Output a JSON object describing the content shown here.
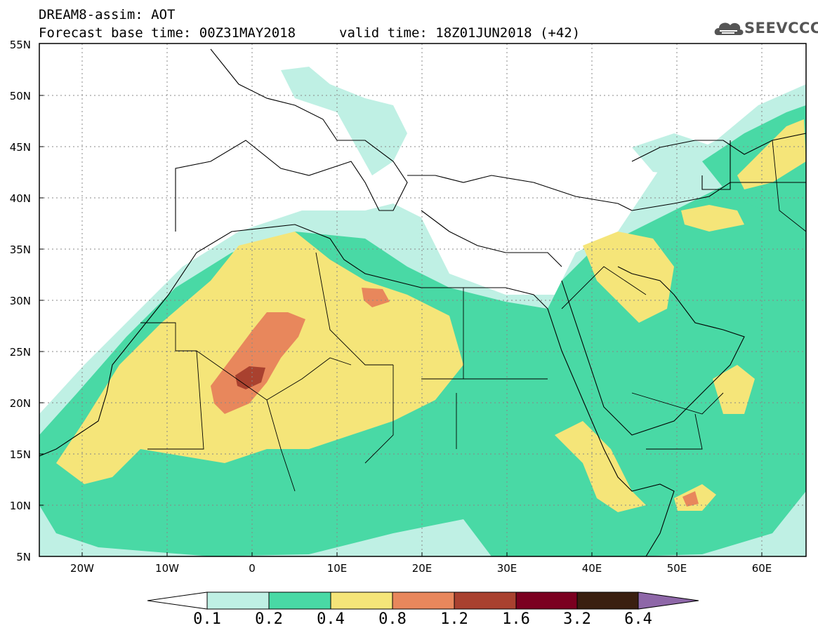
{
  "header": {
    "title": "DREAM8-assim: AOT",
    "base_time": "Forecast base time: 00Z31MAY2018",
    "valid_time": "valid time: 18Z01JUN2018 (+42)",
    "logo_text": "SEEVCCC"
  },
  "axes": {
    "lat_labels": [
      "55N",
      "50N",
      "45N",
      "40N",
      "35N",
      "30N",
      "25N",
      "20N",
      "15N",
      "10N",
      "5N"
    ],
    "lon_labels": [
      "20W",
      "10W",
      "0",
      "10E",
      "20E",
      "30E",
      "40E",
      "50E",
      "60E"
    ]
  },
  "legend": {
    "ticks": [
      "0.1",
      "0.2",
      "0.4",
      "0.8",
      "1.2",
      "1.6",
      "3.2",
      "6.4"
    ],
    "colors": [
      "#ffffff",
      "#bff0e4",
      "#49d9a5",
      "#f5e579",
      "#e8875c",
      "#a9412f",
      "#7b0020",
      "#3a1f10",
      "#8e67a8"
    ]
  },
  "colors": {
    "level_0_1": "#bff0e4",
    "level_0_2": "#49d9a5",
    "level_0_4": "#f5e579",
    "level_0_8": "#e8875c",
    "level_1_2": "#a9412f",
    "frame": "#000000"
  }
}
